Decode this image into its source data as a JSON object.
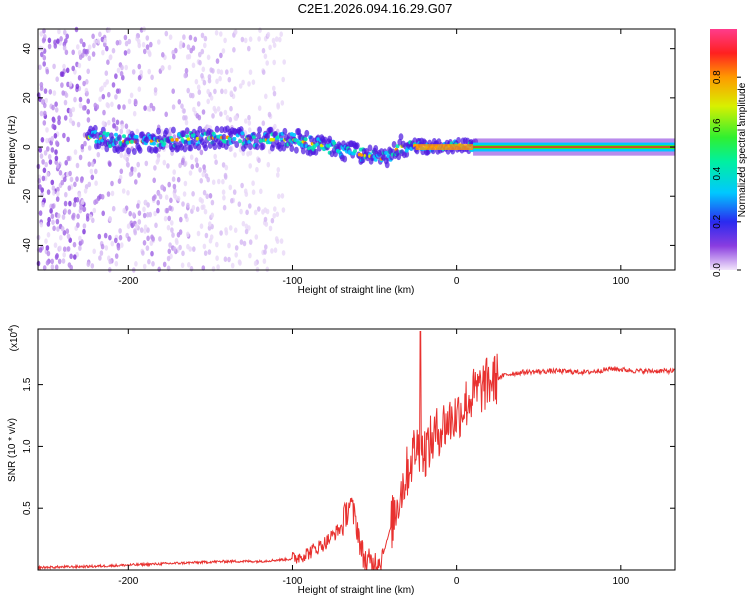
{
  "title": "C2E1.2026.094.16.29.G07",
  "chart_data": [
    {
      "type": "heatmap",
      "xlabel": "Height of straight line (km)",
      "ylabel": "Frequency (Hz)",
      "xlim": [
        -255,
        133
      ],
      "ylim": [
        -50,
        48
      ],
      "x_ticks": [
        -200,
        -100,
        0,
        100
      ],
      "y_ticks": [
        -40,
        -20,
        0,
        20,
        40
      ],
      "colorbar": {
        "label": "Normalized spectral amplitude",
        "range": [
          0,
          1
        ],
        "ticks": [
          0.0,
          0.2,
          0.4,
          0.6,
          0.8
        ],
        "tick_labels": [
          "0.0",
          "0.2",
          "0.4",
          "0.6",
          "0.8"
        ]
      },
      "ridge": {
        "x": [
          -225,
          -200,
          -170,
          -140,
          -120,
          -100,
          -85,
          -70,
          -60,
          -50,
          -45,
          -40,
          -35,
          -30,
          -20,
          -10,
          0,
          10,
          133
        ],
        "frequency_hz": [
          4,
          2,
          3,
          4,
          3,
          3,
          1,
          -1,
          -3,
          -4,
          -5,
          -3,
          0,
          1,
          0,
          0,
          1,
          0,
          0
        ]
      }
    },
    {
      "type": "line",
      "xlabel": "Height of straight line (km)",
      "ylabel": "SNR (10 * v/v)",
      "y_multiplier": "(x10",
      "y_multiplier_exp": "4",
      "xlim": [
        -255,
        133
      ],
      "ylim": [
        0,
        1.95
      ],
      "x_ticks": [
        -200,
        -100,
        0,
        100
      ],
      "y_ticks": [
        0.5,
        1.0,
        1.5
      ],
      "y_tick_labels": [
        "0.5",
        "1.0",
        "1.5"
      ],
      "series_color": "#e8312f",
      "x": [
        -255,
        -220,
        -180,
        -140,
        -120,
        -100,
        -90,
        -80,
        -70,
        -65,
        -60,
        -58,
        -55,
        -50,
        -45,
        -40,
        -35,
        -30,
        -25,
        -20,
        -15,
        -10,
        -5,
        0,
        10,
        20,
        30,
        40,
        60,
        80,
        95,
        110,
        133
      ],
      "y": [
        0.02,
        0.03,
        0.05,
        0.07,
        0.07,
        0.09,
        0.14,
        0.22,
        0.35,
        0.55,
        0.32,
        0.15,
        0.06,
        0.05,
        0.12,
        0.35,
        0.6,
        0.8,
        1.0,
        0.95,
        1.05,
        1.15,
        1.2,
        1.25,
        1.42,
        1.52,
        1.58,
        1.6,
        1.61,
        1.6,
        1.63,
        1.61,
        1.61
      ]
    }
  ]
}
